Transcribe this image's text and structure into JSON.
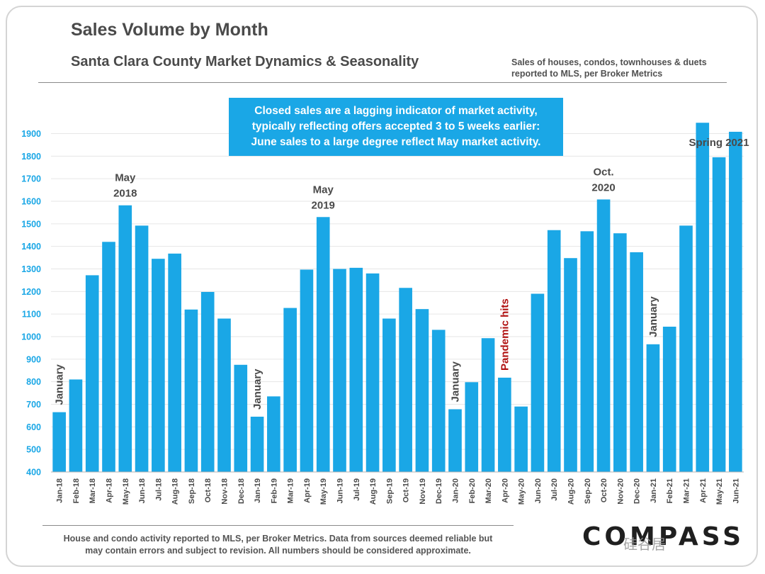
{
  "header": {
    "title": "Sales Volume by Month",
    "subtitle": "Santa Clara County Market Dynamics & Seasonality",
    "source_line1": "Sales of houses, condos, townhouses & duets",
    "source_line2": "reported to MLS, per Broker Metrics"
  },
  "callout": {
    "line1": "Closed sales are a lagging indicator of market activity,",
    "line2": "typically reflecting offers accepted 3 to 5 weeks earlier:",
    "line3": "June sales to a large degree reflect May market activity."
  },
  "footer": {
    "line1": "House and condo activity reported to MLS, per Broker Metrics. Data from sources deemed reliable but",
    "line2": "may contain errors and subject to revision. All numbers should be considered approximate."
  },
  "logo": {
    "text": "COMPASS"
  },
  "watermark": {
    "text": "硅谷居"
  },
  "colors": {
    "bar": "#1aa7e6",
    "gridline": "#e6e6e6",
    "annotation": "#4a4a4a",
    "highlight": "#b01010"
  },
  "chart_data": {
    "type": "bar",
    "title": "Sales Volume by Month",
    "ylim": [
      400,
      1950
    ],
    "yticks": [
      400,
      500,
      600,
      700,
      800,
      900,
      1000,
      1100,
      1200,
      1300,
      1400,
      1500,
      1600,
      1700,
      1800,
      1900
    ],
    "grid": true,
    "categories": [
      "Jan-18",
      "Feb-18",
      "Mar-18",
      "Apr-18",
      "May-18",
      "Jun-18",
      "Jul-18",
      "Aug-18",
      "Sep-18",
      "Oct-18",
      "Nov-18",
      "Dec-18",
      "Jan-19",
      "Feb-19",
      "Mar-19",
      "Apr-19",
      "May-19",
      "Jun-19",
      "Jul-19",
      "Aug-19",
      "Sep-19",
      "Oct-19",
      "Nov-19",
      "Dec-19",
      "Jan-20",
      "Feb-20",
      "Mar-20",
      "Apr-20",
      "May-20",
      "Jun-20",
      "Jul-20",
      "Aug-20",
      "Sep-20",
      "Oct-20",
      "Nov-20",
      "Dec-20",
      "Jan-21",
      "Feb-21",
      "Mar-21",
      "Apr-21",
      "May-21",
      "Jun-21"
    ],
    "values": [
      665,
      810,
      1272,
      1420,
      1582,
      1492,
      1345,
      1368,
      1120,
      1198,
      1080,
      875,
      645,
      735,
      1127,
      1297,
      1530,
      1300,
      1305,
      1280,
      1080,
      1216,
      1122,
      1030,
      678,
      798,
      993,
      818,
      690,
      1190,
      1472,
      1348,
      1467,
      1608,
      1458,
      1374,
      966,
      1044,
      1492,
      1948,
      1795,
      1908
    ],
    "annotations": [
      {
        "text": "January",
        "index": 0,
        "vertical": true
      },
      {
        "text": "May",
        "text2": "2018",
        "index": 4,
        "vertical": false
      },
      {
        "text": "January",
        "index": 12,
        "vertical": true
      },
      {
        "text": "May",
        "text2": "2019",
        "index": 16,
        "vertical": false
      },
      {
        "text": "January",
        "index": 24,
        "vertical": true
      },
      {
        "text": "Pandemic hits",
        "index": 27,
        "vertical": true,
        "highlight": true
      },
      {
        "text": "Oct.",
        "text2": "2020",
        "index": 33,
        "vertical": false
      },
      {
        "text": "January",
        "index": 36,
        "vertical": true
      },
      {
        "text": "Spring 2021",
        "index": 40,
        "vertical": false
      }
    ]
  }
}
